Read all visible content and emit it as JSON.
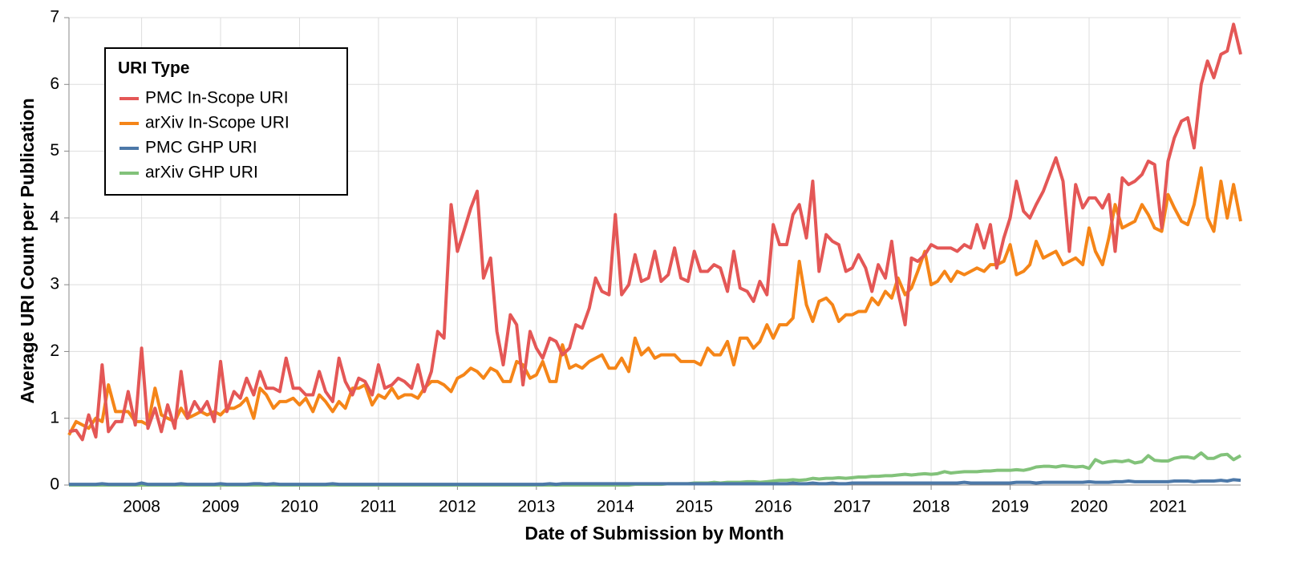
{
  "chart_data": {
    "type": "line",
    "x_label": "Date of Submission by Month",
    "y_label": "Average URI Count per Publication",
    "legend_title": "URI Type",
    "legend": "top-left",
    "grid": true,
    "xlim": [
      2007.08,
      2021.92
    ],
    "xticks": [
      2008,
      2009,
      2010,
      2011,
      2012,
      2013,
      2014,
      2015,
      2016,
      2017,
      2018,
      2019,
      2020,
      2021
    ],
    "ylim": [
      0,
      7
    ],
    "yticks": [
      0,
      1,
      2,
      3,
      4,
      5,
      6,
      7
    ],
    "x": [
      2007.08,
      2007.17,
      2007.25,
      2007.33,
      2007.42,
      2007.5,
      2007.58,
      2007.67,
      2007.75,
      2007.83,
      2007.92,
      2008,
      2008.08,
      2008.17,
      2008.25,
      2008.33,
      2008.42,
      2008.5,
      2008.58,
      2008.67,
      2008.75,
      2008.83,
      2008.92,
      2009,
      2009.08,
      2009.17,
      2009.25,
      2009.33,
      2009.42,
      2009.5,
      2009.58,
      2009.67,
      2009.75,
      2009.83,
      2009.92,
      2010,
      2010.08,
      2010.17,
      2010.25,
      2010.33,
      2010.42,
      2010.5,
      2010.58,
      2010.67,
      2010.75,
      2010.83,
      2010.92,
      2011,
      2011.08,
      2011.17,
      2011.25,
      2011.33,
      2011.42,
      2011.5,
      2011.58,
      2011.67,
      2011.75,
      2011.83,
      2011.92,
      2012,
      2012.08,
      2012.17,
      2012.25,
      2012.33,
      2012.42,
      2012.5,
      2012.58,
      2012.67,
      2012.75,
      2012.83,
      2012.92,
      2013,
      2013.08,
      2013.17,
      2013.25,
      2013.33,
      2013.42,
      2013.5,
      2013.58,
      2013.67,
      2013.75,
      2013.83,
      2013.92,
      2014,
      2014.08,
      2014.17,
      2014.25,
      2014.33,
      2014.42,
      2014.5,
      2014.58,
      2014.67,
      2014.75,
      2014.83,
      2014.92,
      2015,
      2015.08,
      2015.17,
      2015.25,
      2015.33,
      2015.42,
      2015.5,
      2015.58,
      2015.67,
      2015.75,
      2015.83,
      2015.92,
      2016,
      2016.08,
      2016.17,
      2016.25,
      2016.33,
      2016.42,
      2016.5,
      2016.58,
      2016.67,
      2016.75,
      2016.83,
      2016.92,
      2017,
      2017.08,
      2017.17,
      2017.25,
      2017.33,
      2017.42,
      2017.5,
      2017.58,
      2017.67,
      2017.75,
      2017.83,
      2017.92,
      2018,
      2018.08,
      2018.17,
      2018.25,
      2018.33,
      2018.42,
      2018.5,
      2018.58,
      2018.67,
      2018.75,
      2018.83,
      2018.92,
      2019,
      2019.08,
      2019.17,
      2019.25,
      2019.33,
      2019.42,
      2019.5,
      2019.58,
      2019.67,
      2019.75,
      2019.83,
      2019.92,
      2020,
      2020.08,
      2020.17,
      2020.25,
      2020.33,
      2020.42,
      2020.5,
      2020.58,
      2020.67,
      2020.75,
      2020.83,
      2020.92,
      2021,
      2021.08,
      2021.17,
      2021.25,
      2021.33,
      2021.42,
      2021.5,
      2021.58,
      2021.67,
      2021.75,
      2021.83,
      2021.92
    ],
    "series": [
      {
        "name": "PMC In-Scope URI",
        "color": "#e45756",
        "values": [
          0.8,
          0.82,
          0.68,
          1.05,
          0.72,
          1.8,
          0.8,
          0.95,
          0.95,
          1.4,
          0.9,
          2.05,
          0.85,
          1.15,
          0.8,
          1.2,
          0.85,
          1.7,
          1.0,
          1.25,
          1.1,
          1.25,
          0.95,
          1.85,
          1.1,
          1.4,
          1.3,
          1.6,
          1.35,
          1.7,
          1.45,
          1.45,
          1.4,
          1.9,
          1.45,
          1.45,
          1.35,
          1.35,
          1.7,
          1.4,
          1.25,
          1.9,
          1.55,
          1.35,
          1.6,
          1.55,
          1.35,
          1.8,
          1.45,
          1.5,
          1.6,
          1.55,
          1.45,
          1.8,
          1.4,
          1.7,
          2.3,
          2.2,
          4.2,
          3.5,
          3.8,
          4.15,
          4.4,
          3.1,
          3.4,
          2.3,
          1.8,
          2.55,
          2.4,
          1.5,
          2.3,
          2.05,
          1.9,
          2.2,
          2.15,
          1.95,
          2.05,
          2.4,
          2.35,
          2.65,
          3.1,
          2.9,
          2.85,
          4.05,
          2.85,
          3.0,
          3.45,
          3.05,
          3.1,
          3.5,
          3.05,
          3.15,
          3.55,
          3.1,
          3.05,
          3.5,
          3.2,
          3.2,
          3.3,
          3.25,
          2.9,
          3.5,
          2.95,
          2.9,
          2.75,
          3.05,
          2.85,
          3.9,
          3.6,
          3.6,
          4.05,
          4.2,
          3.7,
          4.55,
          3.2,
          3.75,
          3.65,
          3.6,
          3.2,
          3.25,
          3.45,
          3.25,
          2.9,
          3.3,
          3.1,
          3.65,
          2.9,
          2.4,
          3.4,
          3.35,
          3.45,
          3.6,
          3.55,
          3.55,
          3.55,
          3.5,
          3.6,
          3.55,
          3.9,
          3.55,
          3.9,
          3.25,
          3.7,
          4.0,
          4.55,
          4.1,
          4.0,
          4.2,
          4.4,
          4.65,
          4.9,
          4.55,
          3.5,
          4.5,
          4.15,
          4.3,
          4.3,
          4.15,
          4.35,
          3.5,
          4.6,
          4.5,
          4.55,
          4.65,
          4.85,
          4.8,
          3.85,
          4.85,
          5.2,
          5.45,
          5.5,
          5.05,
          6.0,
          6.35,
          6.1,
          6.45,
          6.5,
          6.9,
          6.45
        ]
      },
      {
        "name": "arXiv In-Scope URI",
        "color": "#f58518",
        "values": [
          0.75,
          0.95,
          0.9,
          0.85,
          1.0,
          0.95,
          1.5,
          1.1,
          1.1,
          1.1,
          0.95,
          0.95,
          0.9,
          1.45,
          1.05,
          1.0,
          0.95,
          1.15,
          1.0,
          1.05,
          1.1,
          1.05,
          1.1,
          1.05,
          1.15,
          1.15,
          1.2,
          1.3,
          1.0,
          1.45,
          1.35,
          1.15,
          1.25,
          1.25,
          1.3,
          1.2,
          1.3,
          1.1,
          1.35,
          1.25,
          1.1,
          1.25,
          1.15,
          1.45,
          1.45,
          1.5,
          1.2,
          1.35,
          1.3,
          1.45,
          1.3,
          1.35,
          1.35,
          1.3,
          1.45,
          1.55,
          1.55,
          1.5,
          1.4,
          1.6,
          1.65,
          1.75,
          1.7,
          1.6,
          1.75,
          1.7,
          1.55,
          1.55,
          1.85,
          1.8,
          1.6,
          1.65,
          1.85,
          1.55,
          1.55,
          2.1,
          1.75,
          1.8,
          1.75,
          1.85,
          1.9,
          1.95,
          1.75,
          1.75,
          1.9,
          1.7,
          2.2,
          1.95,
          2.05,
          1.9,
          1.95,
          1.95,
          1.95,
          1.85,
          1.85,
          1.85,
          1.8,
          2.05,
          1.95,
          1.95,
          2.15,
          1.8,
          2.2,
          2.2,
          2.05,
          2.15,
          2.4,
          2.2,
          2.4,
          2.4,
          2.5,
          3.35,
          2.7,
          2.45,
          2.75,
          2.8,
          2.7,
          2.45,
          2.55,
          2.55,
          2.6,
          2.6,
          2.8,
          2.7,
          2.9,
          2.8,
          3.1,
          2.85,
          2.95,
          3.2,
          3.5,
          3.0,
          3.05,
          3.2,
          3.05,
          3.2,
          3.15,
          3.2,
          3.25,
          3.2,
          3.3,
          3.3,
          3.35,
          3.6,
          3.15,
          3.2,
          3.3,
          3.65,
          3.4,
          3.45,
          3.5,
          3.3,
          3.35,
          3.4,
          3.3,
          3.85,
          3.5,
          3.3,
          3.7,
          4.2,
          3.85,
          3.9,
          3.95,
          4.2,
          4.05,
          3.85,
          3.8,
          4.35,
          4.15,
          3.95,
          3.9,
          4.2,
          4.75,
          4.0,
          3.8,
          4.55,
          4.0,
          4.5,
          3.95
        ]
      },
      {
        "name": "PMC GHP URI",
        "color": "#4c78a8",
        "values": [
          0.01,
          0.01,
          0.01,
          0.01,
          0.01,
          0.02,
          0.01,
          0.01,
          0.01,
          0.01,
          0.01,
          0.03,
          0.01,
          0.01,
          0.01,
          0.01,
          0.01,
          0.02,
          0.01,
          0.01,
          0.01,
          0.01,
          0.01,
          0.02,
          0.01,
          0.01,
          0.01,
          0.01,
          0.02,
          0.02,
          0.01,
          0.02,
          0.01,
          0.01,
          0.01,
          0.01,
          0.01,
          0.01,
          0.01,
          0.01,
          0.02,
          0.01,
          0.01,
          0.01,
          0.01,
          0.01,
          0.01,
          0.01,
          0.01,
          0.01,
          0.01,
          0.01,
          0.01,
          0.01,
          0.01,
          0.01,
          0.01,
          0.01,
          0.01,
          0.01,
          0.01,
          0.01,
          0.01,
          0.01,
          0.01,
          0.01,
          0.01,
          0.01,
          0.01,
          0.01,
          0.01,
          0.01,
          0.01,
          0.02,
          0.01,
          0.02,
          0.02,
          0.02,
          0.02,
          0.02,
          0.02,
          0.02,
          0.02,
          0.02,
          0.02,
          0.02,
          0.02,
          0.02,
          0.02,
          0.02,
          0.02,
          0.02,
          0.02,
          0.02,
          0.02,
          0.02,
          0.02,
          0.02,
          0.02,
          0.02,
          0.02,
          0.02,
          0.02,
          0.02,
          0.02,
          0.02,
          0.02,
          0.02,
          0.02,
          0.02,
          0.03,
          0.02,
          0.02,
          0.03,
          0.02,
          0.02,
          0.03,
          0.02,
          0.02,
          0.03,
          0.03,
          0.03,
          0.03,
          0.03,
          0.03,
          0.03,
          0.03,
          0.03,
          0.03,
          0.03,
          0.03,
          0.03,
          0.03,
          0.03,
          0.03,
          0.03,
          0.04,
          0.03,
          0.03,
          0.03,
          0.03,
          0.03,
          0.03,
          0.03,
          0.04,
          0.04,
          0.04,
          0.03,
          0.04,
          0.04,
          0.04,
          0.04,
          0.04,
          0.04,
          0.04,
          0.05,
          0.04,
          0.04,
          0.04,
          0.05,
          0.05,
          0.06,
          0.05,
          0.05,
          0.05,
          0.05,
          0.05,
          0.05,
          0.06,
          0.06,
          0.06,
          0.05,
          0.06,
          0.06,
          0.06,
          0.07,
          0.06,
          0.08,
          0.07
        ]
      },
      {
        "name": "arXiv GHP URI",
        "color": "#82c27a",
        "values": [
          0,
          0,
          0,
          0,
          0,
          0,
          0,
          0,
          0,
          0,
          0,
          0,
          0,
          0,
          0,
          0,
          0,
          0,
          0,
          0,
          0,
          0,
          0,
          0,
          0,
          0,
          0,
          0,
          0,
          0,
          0,
          0,
          0,
          0,
          0,
          0,
          0,
          0,
          0,
          0,
          0,
          0,
          0,
          0,
          0,
          0,
          0,
          0,
          0,
          0,
          0,
          0,
          0,
          0,
          0,
          0,
          0,
          0,
          0,
          0,
          0,
          0,
          0,
          0,
          0,
          0,
          0,
          0,
          0,
          0,
          0,
          0,
          0,
          0,
          0,
          0,
          0,
          0,
          0,
          0,
          0,
          0,
          0,
          0,
          0,
          0,
          0.01,
          0.01,
          0.01,
          0.01,
          0.01,
          0.02,
          0.02,
          0.02,
          0.02,
          0.03,
          0.03,
          0.03,
          0.04,
          0.03,
          0.04,
          0.04,
          0.04,
          0.05,
          0.05,
          0.04,
          0.05,
          0.06,
          0.07,
          0.07,
          0.08,
          0.07,
          0.08,
          0.1,
          0.09,
          0.1,
          0.1,
          0.11,
          0.1,
          0.11,
          0.12,
          0.12,
          0.13,
          0.13,
          0.14,
          0.14,
          0.15,
          0.16,
          0.15,
          0.16,
          0.17,
          0.16,
          0.17,
          0.2,
          0.18,
          0.19,
          0.2,
          0.2,
          0.2,
          0.21,
          0.21,
          0.22,
          0.22,
          0.22,
          0.23,
          0.22,
          0.24,
          0.27,
          0.28,
          0.28,
          0.27,
          0.29,
          0.28,
          0.27,
          0.28,
          0.25,
          0.38,
          0.33,
          0.35,
          0.36,
          0.35,
          0.37,
          0.33,
          0.35,
          0.44,
          0.37,
          0.36,
          0.36,
          0.4,
          0.42,
          0.42,
          0.4,
          0.48,
          0.4,
          0.4,
          0.45,
          0.46,
          0.38,
          0.44
        ]
      }
    ]
  }
}
